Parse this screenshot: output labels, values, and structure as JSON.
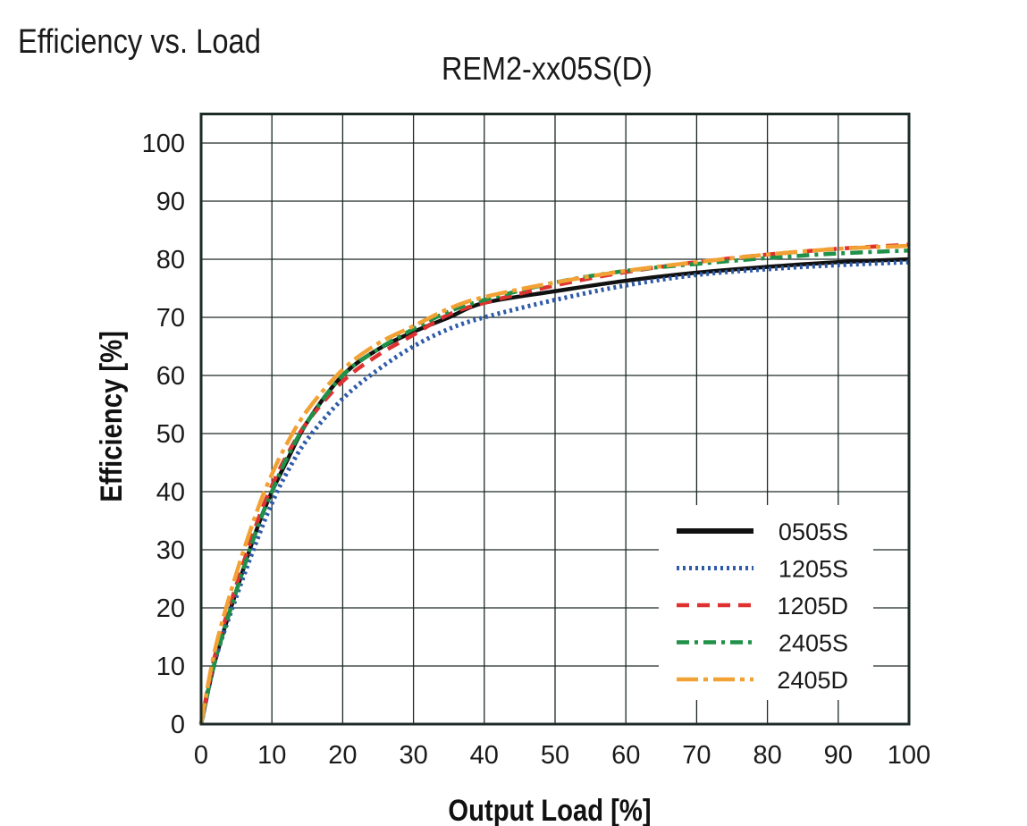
{
  "page": {
    "heading": "Efficiency vs. Load"
  },
  "chart_data": {
    "type": "line",
    "title": "REM2-xx05S(D)",
    "xlabel": "Output Load [%]",
    "ylabel": "Efficiency [%]",
    "xlim": [
      0,
      100
    ],
    "ylim": [
      0,
      105
    ],
    "xticks": [
      0,
      10,
      20,
      30,
      40,
      50,
      60,
      70,
      80,
      90,
      100
    ],
    "yticks": [
      0,
      10,
      20,
      30,
      40,
      50,
      60,
      70,
      80,
      90,
      100
    ],
    "grid": true,
    "legend_position": "bottom-right",
    "series": [
      {
        "name": "0505S",
        "color": "#111111",
        "style": "solid",
        "x": [
          0,
          2,
          5,
          8,
          10,
          12,
          15,
          20,
          25,
          30,
          35,
          40,
          50,
          60,
          70,
          80,
          90,
          100
        ],
        "y": [
          0,
          11,
          23,
          34,
          40,
          45,
          52,
          60,
          64.5,
          67.5,
          70,
          72.5,
          74.5,
          76.3,
          77.7,
          78.7,
          79.5,
          80
        ]
      },
      {
        "name": "1205S",
        "color": "#2e5aa8",
        "style": "dotted",
        "x": [
          0,
          2,
          5,
          8,
          10,
          12,
          15,
          20,
          25,
          30,
          35,
          40,
          50,
          60,
          70,
          80,
          90,
          100
        ],
        "y": [
          0,
          11,
          22,
          32,
          38,
          43,
          49,
          56,
          61,
          65,
          68,
          70,
          73,
          75.5,
          77.3,
          78.3,
          79,
          79.5
        ]
      },
      {
        "name": "1205D",
        "color": "#e03131",
        "style": "dashed",
        "x": [
          0,
          2,
          5,
          8,
          10,
          12,
          15,
          20,
          25,
          30,
          35,
          40,
          50,
          60,
          70,
          80,
          90,
          100
        ],
        "y": [
          0,
          12,
          24,
          35,
          41,
          46,
          52,
          59,
          63.5,
          67,
          70.5,
          72.5,
          75.5,
          77.8,
          79.5,
          80.8,
          81.8,
          82.5
        ]
      },
      {
        "name": "2405S",
        "color": "#1f9148",
        "style": "dash-dot",
        "x": [
          0,
          2,
          5,
          8,
          10,
          12,
          15,
          20,
          25,
          30,
          35,
          40,
          50,
          60,
          70,
          80,
          90,
          100
        ],
        "y": [
          0,
          11,
          23,
          34,
          40,
          45.5,
          52,
          60,
          64.5,
          68,
          71,
          73,
          76,
          78,
          79.2,
          80.2,
          81,
          81.5
        ]
      },
      {
        "name": "2405D",
        "color": "#f2a134",
        "style": "long-dash-dot",
        "x": [
          0,
          2,
          5,
          8,
          10,
          12,
          15,
          20,
          25,
          30,
          35,
          40,
          50,
          60,
          70,
          80,
          90,
          100
        ],
        "y": [
          0,
          13,
          26,
          37,
          43,
          48,
          54,
          61,
          65.5,
          68.5,
          71.5,
          73.5,
          76,
          78,
          79.5,
          80.8,
          81.8,
          82.3
        ]
      }
    ]
  }
}
